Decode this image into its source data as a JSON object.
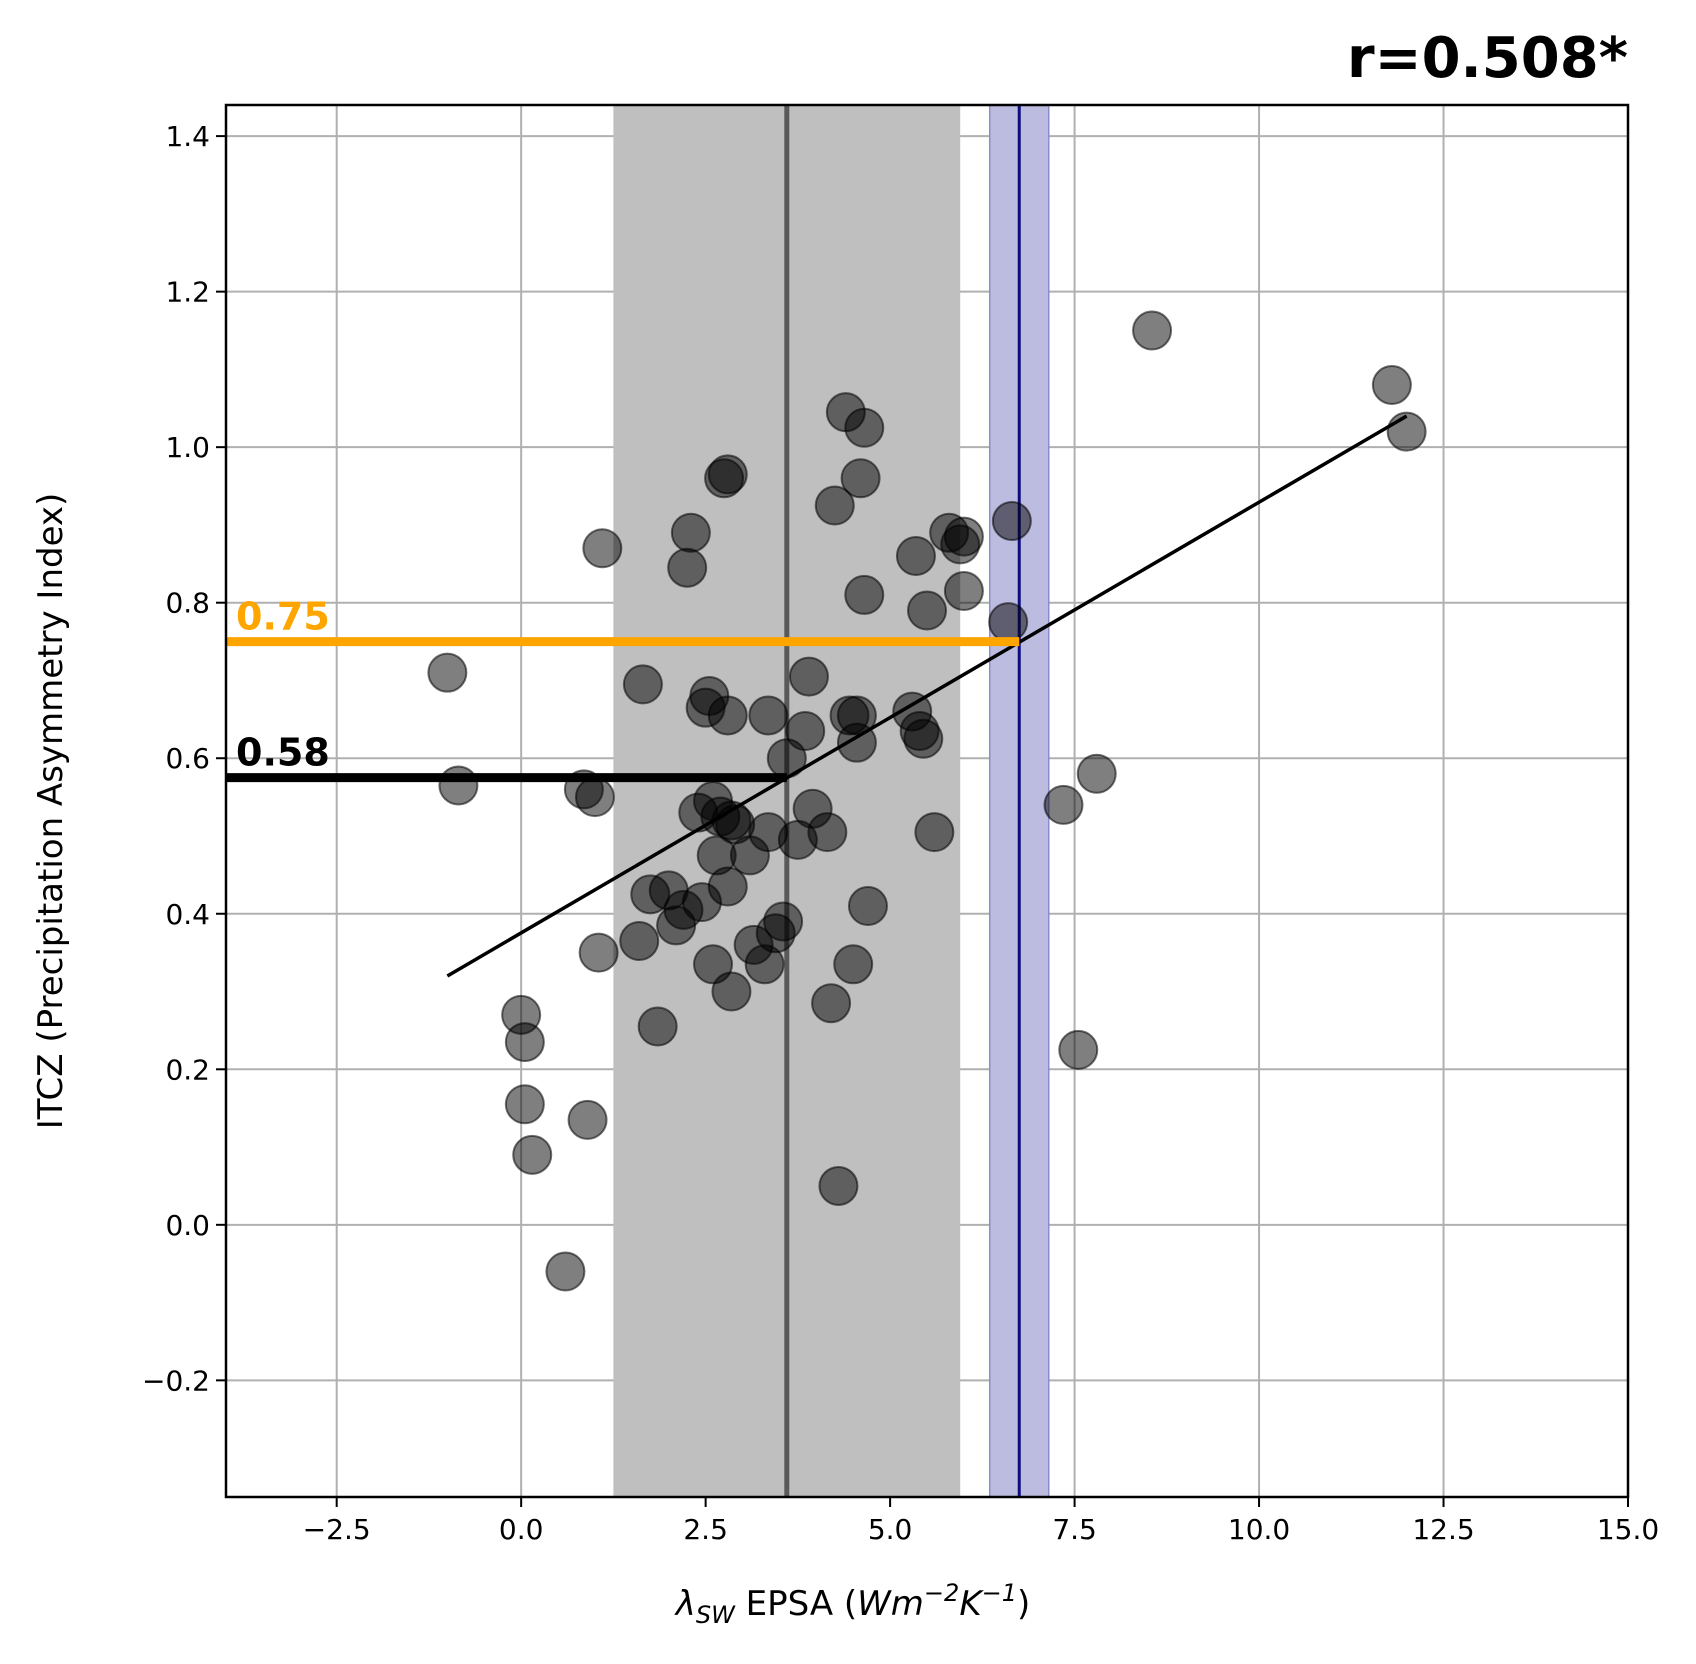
{
  "chart_data": {
    "type": "scatter",
    "title": "r=0.508*",
    "xlabel": {
      "symbol": "λ",
      "subscript": "SW",
      "text": " EPSA (",
      "unit_base": "Wm",
      "unit_exp1": "−2",
      "unit_mid": "K",
      "unit_exp2": "−1",
      "close": ")"
    },
    "ylabel": "ITCZ (Precipitation Asymmetry Index)",
    "xlim": [
      -4.0,
      15.0
    ],
    "ylim": [
      -0.35,
      1.44
    ],
    "xticks": [
      -2.5,
      0.0,
      2.5,
      5.0,
      7.5,
      10.0,
      12.5,
      15.0
    ],
    "xtick_labels": [
      "−2.5",
      "0.0",
      "2.5",
      "5.0",
      "7.5",
      "10.0",
      "12.5",
      "15.0"
    ],
    "yticks": [
      -0.2,
      0.0,
      0.2,
      0.4,
      0.6,
      0.8,
      1.0,
      1.2,
      1.4
    ],
    "ytick_labels": [
      "−0.2",
      "0.0",
      "0.2",
      "0.4",
      "0.6",
      "0.8",
      "1.0",
      "1.2",
      "1.4"
    ],
    "grid": true,
    "model_band": {
      "x0": 1.25,
      "x1": 5.95,
      "center": 3.6,
      "color": "#bfbfbf",
      "line_color": "#595959"
    },
    "obs_band": {
      "x0": 6.35,
      "x1": 7.15,
      "center": 6.75,
      "color": "#bcbce0",
      "line_color": "#0d0d80"
    },
    "fit_line": {
      "x": [
        -1.0,
        12.0
      ],
      "y": [
        0.32,
        1.04
      ]
    },
    "constraint_lines": [
      {
        "label": "0.75",
        "y": 0.75,
        "x_end": 6.75,
        "color": "#ffa500"
      },
      {
        "label": "0.58",
        "y": 0.575,
        "x_end": 3.6,
        "color": "#000000"
      }
    ],
    "points": [
      {
        "x": -1.0,
        "y": 0.71
      },
      {
        "x": -0.85,
        "y": 0.565
      },
      {
        "x": 0.0,
        "y": 0.27
      },
      {
        "x": 0.05,
        "y": 0.235
      },
      {
        "x": 0.05,
        "y": 0.155
      },
      {
        "x": 0.15,
        "y": 0.09
      },
      {
        "x": 0.6,
        "y": -0.06
      },
      {
        "x": 0.9,
        "y": 0.135
      },
      {
        "x": 0.85,
        "y": 0.56
      },
      {
        "x": 1.0,
        "y": 0.55
      },
      {
        "x": 1.05,
        "y": 0.35
      },
      {
        "x": 1.1,
        "y": 0.87
      },
      {
        "x": 1.65,
        "y": 0.695
      },
      {
        "x": 1.6,
        "y": 0.365
      },
      {
        "x": 1.75,
        "y": 0.425
      },
      {
        "x": 1.85,
        "y": 0.255
      },
      {
        "x": 2.0,
        "y": 0.43
      },
      {
        "x": 2.1,
        "y": 0.385
      },
      {
        "x": 2.2,
        "y": 0.405
      },
      {
        "x": 2.25,
        "y": 0.845
      },
      {
        "x": 2.3,
        "y": 0.89
      },
      {
        "x": 2.4,
        "y": 0.53
      },
      {
        "x": 2.45,
        "y": 0.415
      },
      {
        "x": 2.5,
        "y": 0.665
      },
      {
        "x": 2.55,
        "y": 0.68
      },
      {
        "x": 2.6,
        "y": 0.335
      },
      {
        "x": 2.6,
        "y": 0.545
      },
      {
        "x": 2.65,
        "y": 0.475
      },
      {
        "x": 2.7,
        "y": 0.525
      },
      {
        "x": 2.75,
        "y": 0.96
      },
      {
        "x": 2.8,
        "y": 0.965
      },
      {
        "x": 2.8,
        "y": 0.655
      },
      {
        "x": 2.8,
        "y": 0.435
      },
      {
        "x": 2.85,
        "y": 0.3
      },
      {
        "x": 2.85,
        "y": 0.52
      },
      {
        "x": 2.9,
        "y": 0.515
      },
      {
        "x": 3.1,
        "y": 0.475
      },
      {
        "x": 3.15,
        "y": 0.36
      },
      {
        "x": 3.3,
        "y": 0.335
      },
      {
        "x": 3.35,
        "y": 0.655
      },
      {
        "x": 3.35,
        "y": 0.505
      },
      {
        "x": 3.45,
        "y": 0.375
      },
      {
        "x": 3.55,
        "y": 0.39
      },
      {
        "x": 3.6,
        "y": 0.6
      },
      {
        "x": 3.75,
        "y": 0.495
      },
      {
        "x": 3.85,
        "y": 0.635
      },
      {
        "x": 3.9,
        "y": 0.705
      },
      {
        "x": 3.95,
        "y": 0.535
      },
      {
        "x": 4.15,
        "y": 0.505
      },
      {
        "x": 4.2,
        "y": 0.285
      },
      {
        "x": 4.25,
        "y": 0.925
      },
      {
        "x": 4.3,
        "y": 0.05
      },
      {
        "x": 4.4,
        "y": 1.045
      },
      {
        "x": 4.45,
        "y": 0.655
      },
      {
        "x": 4.5,
        "y": 0.335
      },
      {
        "x": 4.55,
        "y": 0.62
      },
      {
        "x": 4.55,
        "y": 0.655
      },
      {
        "x": 4.6,
        "y": 0.96
      },
      {
        "x": 4.65,
        "y": 1.025
      },
      {
        "x": 4.65,
        "y": 0.81
      },
      {
        "x": 4.7,
        "y": 0.41
      },
      {
        "x": 5.3,
        "y": 0.66
      },
      {
        "x": 5.35,
        "y": 0.86
      },
      {
        "x": 5.4,
        "y": 0.635
      },
      {
        "x": 5.45,
        "y": 0.625
      },
      {
        "x": 5.5,
        "y": 0.79
      },
      {
        "x": 5.6,
        "y": 0.505
      },
      {
        "x": 5.8,
        "y": 0.89
      },
      {
        "x": 5.95,
        "y": 0.875
      },
      {
        "x": 6.0,
        "y": 0.885
      },
      {
        "x": 6.0,
        "y": 0.815
      },
      {
        "x": 6.6,
        "y": 0.775
      },
      {
        "x": 6.65,
        "y": 0.905
      },
      {
        "x": 7.35,
        "y": 0.54
      },
      {
        "x": 7.55,
        "y": 0.225
      },
      {
        "x": 7.8,
        "y": 0.58
      },
      {
        "x": 8.55,
        "y": 1.15
      },
      {
        "x": 11.8,
        "y": 1.08
      },
      {
        "x": 12.0,
        "y": 1.02
      }
    ]
  }
}
